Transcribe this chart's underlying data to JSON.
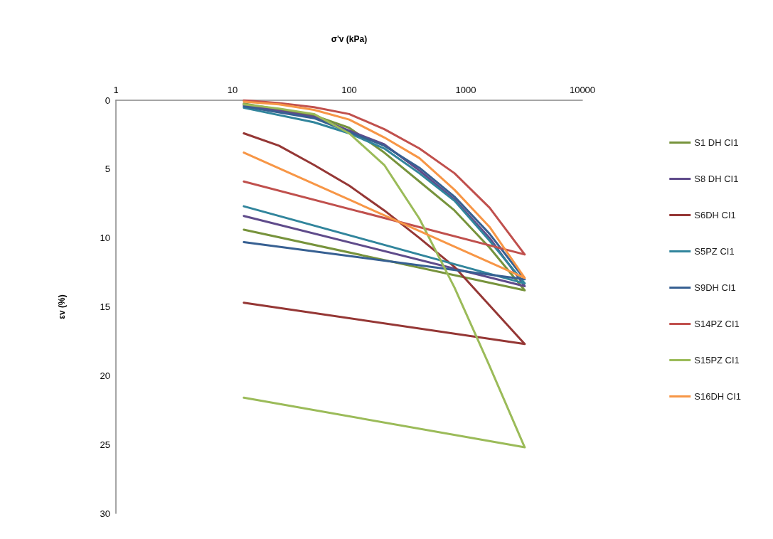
{
  "chart_data": {
    "type": "line",
    "xlabel": "σ'v (kPa)",
    "ylabel": "εv (%)",
    "log": "x",
    "xlim": [
      1,
      10000
    ],
    "xticks": [
      1,
      10,
      100,
      1000,
      10000
    ],
    "ylim": [
      30,
      0
    ],
    "yticks": [
      0,
      5,
      10,
      15,
      20,
      25,
      30
    ],
    "grid": false,
    "legend": "right",
    "marker": "none",
    "line_style": "solid",
    "series": [
      {
        "name": "S1 DH CI1",
        "color": "#77933c",
        "x": [
          12.5,
          50,
          100,
          200,
          400,
          800,
          1600,
          3200,
          12.5
        ],
        "values": [
          0.25,
          1.1,
          2.0,
          3.8,
          5.9,
          8.0,
          10.7,
          13.8,
          9.4
        ]
      },
      {
        "name": "S8 DH CI1",
        "color": "#5f4b8b",
        "x": [
          12.5,
          50,
          100,
          200,
          400,
          800,
          1600,
          3200,
          12.5
        ],
        "values": [
          0.35,
          1.2,
          2.2,
          3.2,
          5.1,
          7.2,
          10.0,
          13.5,
          8.4
        ]
      },
      {
        "name": "S6DH CI1",
        "color": "#953735",
        "x": [
          12.5,
          25,
          50,
          100,
          200,
          400,
          800,
          1600,
          3200,
          12.5
        ],
        "values": [
          2.4,
          3.3,
          4.7,
          6.2,
          8.0,
          10.0,
          12.1,
          14.9,
          17.7,
          14.7
        ]
      },
      {
        "name": "S5PZ CI1",
        "color": "#31859c",
        "x": [
          12.5,
          50,
          100,
          200,
          400,
          800,
          1600,
          3200,
          12.5
        ],
        "values": [
          0.55,
          1.6,
          2.4,
          3.5,
          5.3,
          7.3,
          10.2,
          13.3,
          7.7
        ]
      },
      {
        "name": "S9DH CI1",
        "color": "#376092",
        "x": [
          12.5,
          50,
          100,
          200,
          400,
          800,
          1600,
          3200,
          12.5
        ],
        "values": [
          0.45,
          1.3,
          2.3,
          3.3,
          4.9,
          7.0,
          9.7,
          13.0,
          10.3
        ]
      },
      {
        "name": "S14PZ CI1",
        "color": "#c0504d",
        "x": [
          12.5,
          25,
          50,
          100,
          200,
          400,
          800,
          1600,
          3200,
          12.5
        ],
        "values": [
          0.0,
          0.2,
          0.5,
          1.0,
          2.1,
          3.5,
          5.3,
          7.8,
          11.2,
          5.9
        ]
      },
      {
        "name": "S15PZ CI1",
        "color": "#9bbb59",
        "x": [
          12.5,
          25,
          50,
          100,
          200,
          400,
          800,
          1600,
          3200,
          12.5
        ],
        "values": [
          0.3,
          0.6,
          1.0,
          2.4,
          4.7,
          8.6,
          13.6,
          19.3,
          25.2,
          21.6
        ]
      },
      {
        "name": "S16DH CI1",
        "color": "#f79646",
        "x": [
          12.5,
          25,
          50,
          100,
          200,
          400,
          800,
          1600,
          3200,
          12.5
        ],
        "values": [
          0.1,
          0.3,
          0.7,
          1.4,
          2.7,
          4.2,
          6.5,
          9.2,
          12.9,
          3.8
        ]
      }
    ]
  }
}
